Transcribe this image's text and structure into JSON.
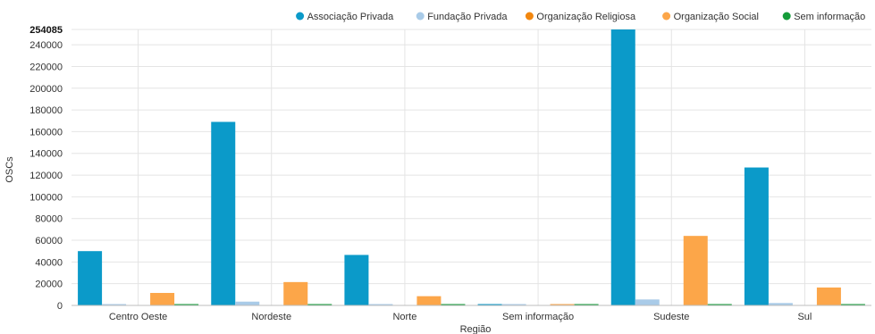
{
  "chart_data": {
    "type": "bar",
    "xlabel": "Região",
    "ylabel": "OSCs",
    "ymax_label": "254085",
    "ylim": [
      0,
      254085
    ],
    "yticks": [
      0,
      20000,
      40000,
      60000,
      80000,
      100000,
      120000,
      140000,
      160000,
      180000,
      200000,
      220000,
      240000
    ],
    "grid": true,
    "legend_position": "top-right",
    "categories": [
      "Centro Oeste",
      "Nordeste",
      "Norte",
      "Sem informação",
      "Sudeste",
      "Sul"
    ],
    "series": [
      {
        "name": "Associação Privada",
        "color": "#0b9ac9",
        "values": [
          50000,
          169000,
          46500,
          300,
          254085,
          127000
        ]
      },
      {
        "name": "Fundação Privada",
        "color": "#a9cbe8",
        "values": [
          1200,
          3500,
          700,
          50,
          5500,
          2200
        ]
      },
      {
        "name": "Organização Religiosa",
        "color": "#f2870f",
        "values": [
          0,
          0,
          0,
          0,
          0,
          0
        ]
      },
      {
        "name": "Organização Social",
        "color": "#fca649",
        "values": [
          11500,
          21500,
          8500,
          150,
          64000,
          16500
        ]
      },
      {
        "name": "Sem informação",
        "color": "#159c3a",
        "values": [
          400,
          600,
          300,
          100,
          700,
          450
        ]
      }
    ]
  }
}
